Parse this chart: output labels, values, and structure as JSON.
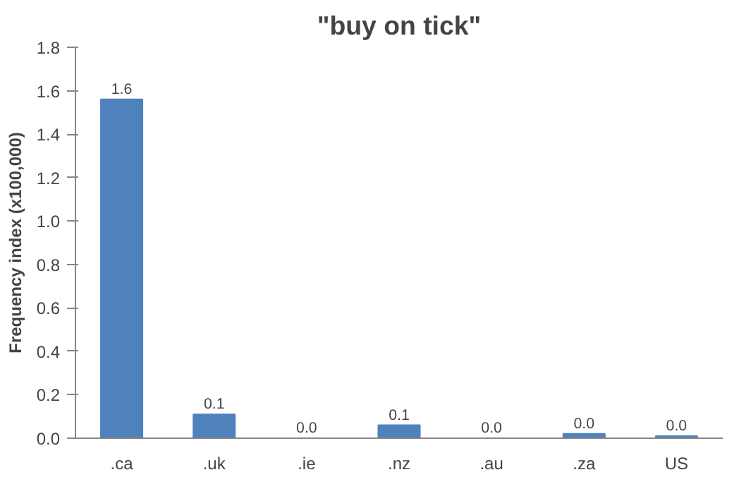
{
  "chart_data": {
    "type": "bar",
    "title": "\"buy on tick\"",
    "ylabel": "Frequency index (x100,000)",
    "categories": [
      ".ca",
      ".uk",
      ".ie",
      ".nz",
      ".au",
      ".za",
      "US"
    ],
    "values": [
      1.56,
      0.11,
      0,
      0.06,
      0,
      0.02,
      0.01
    ],
    "value_labels": [
      "1.6",
      "0.1",
      "0.0",
      "0.1",
      "0.0",
      "0.0",
      "0.0"
    ],
    "color": "#4f81bd",
    "ylim": [
      0,
      1.8
    ],
    "yticks": [
      {
        "value": 0,
        "label": "0.0"
      },
      {
        "value": 0.2,
        "label": "0.2"
      },
      {
        "value": 0.4,
        "label": "0.4"
      },
      {
        "value": 0.6,
        "label": "0.6"
      },
      {
        "value": 0.8,
        "label": "0.8"
      },
      {
        "value": 1.0,
        "label": "1.0"
      },
      {
        "value": 1.2,
        "label": "1.2"
      },
      {
        "value": 1.4,
        "label": "1.4"
      },
      {
        "value": 1.6,
        "label": "1.6"
      },
      {
        "value": 1.8,
        "label": "1.8"
      }
    ],
    "grid": false
  }
}
